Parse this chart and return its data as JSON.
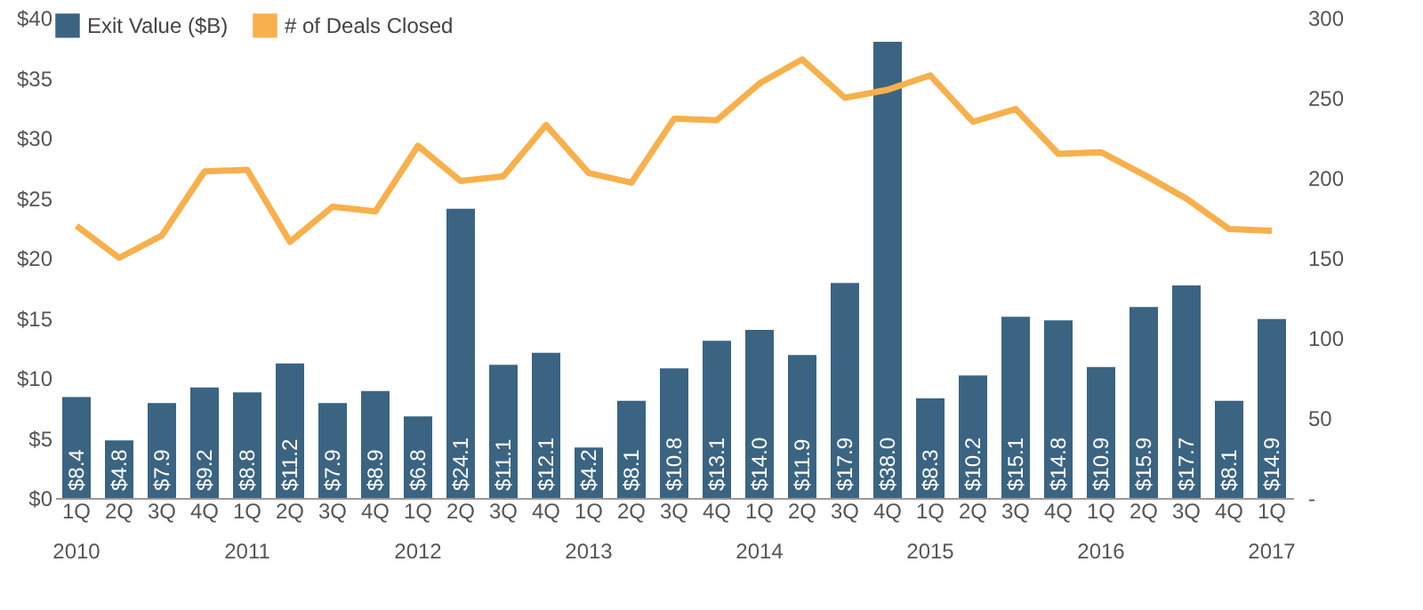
{
  "chart_data": {
    "type": "bar",
    "categories": [
      "1Q",
      "2Q",
      "3Q",
      "4Q",
      "1Q",
      "2Q",
      "3Q",
      "4Q",
      "1Q",
      "2Q",
      "3Q",
      "4Q",
      "1Q",
      "2Q",
      "3Q",
      "4Q",
      "1Q",
      "2Q",
      "3Q",
      "4Q",
      "1Q",
      "2Q",
      "3Q",
      "4Q",
      "1Q",
      "2Q",
      "3Q",
      "4Q",
      "1Q"
    ],
    "series": [
      {
        "name": "Exit Value ($B)",
        "color": "#3b6482",
        "values": [
          8.4,
          4.8,
          7.9,
          9.2,
          8.8,
          11.2,
          7.9,
          8.9,
          6.8,
          24.1,
          11.1,
          12.1,
          4.2,
          8.1,
          10.8,
          13.1,
          14.0,
          11.9,
          17.9,
          38.0,
          8.3,
          10.2,
          15.1,
          14.8,
          10.9,
          15.9,
          17.7,
          8.1,
          14.9
        ],
        "value_labels": [
          "$8.4",
          "$4.8",
          "$7.9",
          "$9.2",
          "$8.8",
          "$11.2",
          "$7.9",
          "$8.9",
          "$6.8",
          "$24.1",
          "$11.1",
          "$12.1",
          "$4.2",
          "$8.1",
          "$10.8",
          "$13.1",
          "$14.0",
          "$11.9",
          "$17.9",
          "$38.0",
          "$8.3",
          "$10.2",
          "$15.1",
          "$14.8",
          "$10.9",
          "$15.9",
          "$17.7",
          "$8.1",
          "$14.9"
        ]
      },
      {
        "name": "# of Deals Closed",
        "type": "line",
        "axis": "y2",
        "color": "#f7b04b",
        "values": [
          170,
          150,
          164,
          204,
          205,
          160,
          182,
          179,
          220,
          198,
          201,
          233,
          203,
          197,
          237,
          236,
          259,
          274,
          250,
          255,
          264,
          235,
          243,
          215,
          216,
          202,
          187,
          168,
          167
        ]
      }
    ],
    "ylim": [
      0,
      40
    ],
    "yticks": [
      {
        "value": 0,
        "label": "$0"
      },
      {
        "value": 5,
        "label": "$5"
      },
      {
        "value": 10,
        "label": "$10"
      },
      {
        "value": 15,
        "label": "$15"
      },
      {
        "value": 20,
        "label": "$20"
      },
      {
        "value": 25,
        "label": "$25"
      },
      {
        "value": 30,
        "label": "$30"
      },
      {
        "value": 35,
        "label": "$35"
      },
      {
        "value": 40,
        "label": "$40"
      }
    ],
    "y2lim": [
      0,
      300
    ],
    "y2ticks": [
      {
        "value": 0,
        "label": "-"
      },
      50,
      100,
      150,
      200,
      250,
      300
    ],
    "annotations": [
      "2010",
      "2011",
      "2012",
      "2013",
      "2014",
      "2015",
      "2016",
      "2017"
    ],
    "legend": "top",
    "grid": false
  }
}
